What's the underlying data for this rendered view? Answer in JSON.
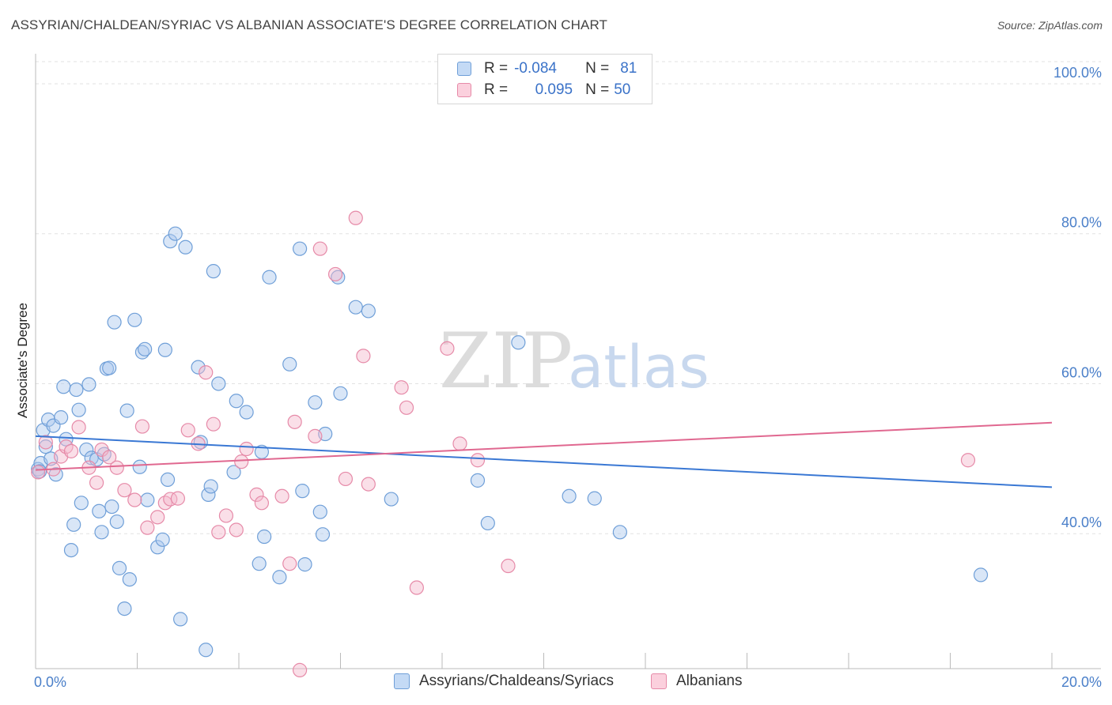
{
  "title": "ASSYRIAN/CHALDEAN/SYRIAC VS ALBANIAN ASSOCIATE'S DEGREE CORRELATION CHART",
  "source": "Source: ZipAtlas.com",
  "watermark": {
    "zip": "ZIP",
    "atlas": "atlas"
  },
  "legend": {
    "rows": [
      {
        "r_label": "R =",
        "r_value": "-0.084",
        "n_label": "N =",
        "n_value": "81"
      },
      {
        "r_label": "R =",
        "r_value": "0.095",
        "n_label": "N =",
        "n_value": "50"
      }
    ]
  },
  "bottom_legend": [
    {
      "label": "Assyrians/Chaldeans/Syriacs"
    },
    {
      "label": "Albanians"
    }
  ],
  "colors": {
    "blue_fill": "#aac8ee",
    "blue_stroke": "#6f9fd8",
    "blue_line": "#3a78d4",
    "pink_fill": "#f5b8cb",
    "pink_stroke": "#e68aa8",
    "pink_line": "#e06890"
  },
  "chart_data": {
    "type": "scatter",
    "ylabel": "Associate's Degree",
    "xlim": [
      0,
      20
    ],
    "ylim": [
      22,
      104
    ],
    "x_tick_labels": [
      "0.0%",
      "20.0%"
    ],
    "y_ticks": [
      {
        "value": 40,
        "label": "40.0%"
      },
      {
        "value": 60,
        "label": "60.0%"
      },
      {
        "value": 80,
        "label": "80.0%"
      },
      {
        "value": 100,
        "label": "100.0%"
      }
    ],
    "series": [
      {
        "name": "Assyrians/Chaldeans/Syriacs",
        "trend": {
          "x": [
            0,
            20
          ],
          "y": [
            53.0,
            46.2
          ]
        },
        "points": [
          [
            0.05,
            48.6
          ],
          [
            0.1,
            49.4
          ],
          [
            0.15,
            53.8
          ],
          [
            0.2,
            51.6
          ],
          [
            0.25,
            55.2
          ],
          [
            0.3,
            50.0
          ],
          [
            0.35,
            54.4
          ],
          [
            0.4,
            47.9
          ],
          [
            0.5,
            55.5
          ],
          [
            0.55,
            59.6
          ],
          [
            0.6,
            52.6
          ],
          [
            0.7,
            37.8
          ],
          [
            0.75,
            41.2
          ],
          [
            0.8,
            59.2
          ],
          [
            0.85,
            56.5
          ],
          [
            0.9,
            44.1
          ],
          [
            1.0,
            51.2
          ],
          [
            1.05,
            59.9
          ],
          [
            1.1,
            50.1
          ],
          [
            1.2,
            49.9
          ],
          [
            1.25,
            43.0
          ],
          [
            1.3,
            40.2
          ],
          [
            1.35,
            50.6
          ],
          [
            1.4,
            62.0
          ],
          [
            1.45,
            62.1
          ],
          [
            1.5,
            43.6
          ],
          [
            1.55,
            68.2
          ],
          [
            1.6,
            41.6
          ],
          [
            1.65,
            35.4
          ],
          [
            1.75,
            30.0
          ],
          [
            1.8,
            56.4
          ],
          [
            1.85,
            33.9
          ],
          [
            1.95,
            68.5
          ],
          [
            2.05,
            48.9
          ],
          [
            2.1,
            64.2
          ],
          [
            2.15,
            64.6
          ],
          [
            2.2,
            44.5
          ],
          [
            2.4,
            38.2
          ],
          [
            2.5,
            39.2
          ],
          [
            2.55,
            64.5
          ],
          [
            2.6,
            47.2
          ],
          [
            2.65,
            79.0
          ],
          [
            2.75,
            80.0
          ],
          [
            2.85,
            28.6
          ],
          [
            2.95,
            78.2
          ],
          [
            3.2,
            62.2
          ],
          [
            3.25,
            52.2
          ],
          [
            3.35,
            24.5
          ],
          [
            3.4,
            45.2
          ],
          [
            3.45,
            46.3
          ],
          [
            3.5,
            75.0
          ],
          [
            3.6,
            60.0
          ],
          [
            3.9,
            48.2
          ],
          [
            3.95,
            57.7
          ],
          [
            4.15,
            56.2
          ],
          [
            4.4,
            36.0
          ],
          [
            4.45,
            50.9
          ],
          [
            4.5,
            39.6
          ],
          [
            4.6,
            74.2
          ],
          [
            4.8,
            34.2
          ],
          [
            5.0,
            62.6
          ],
          [
            5.2,
            78.0
          ],
          [
            5.25,
            45.7
          ],
          [
            5.3,
            35.9
          ],
          [
            5.5,
            57.5
          ],
          [
            5.6,
            42.9
          ],
          [
            5.65,
            39.9
          ],
          [
            5.7,
            53.3
          ],
          [
            5.95,
            74.2
          ],
          [
            6.0,
            58.7
          ],
          [
            6.3,
            70.2
          ],
          [
            6.55,
            69.7
          ],
          [
            7.0,
            44.6
          ],
          [
            8.7,
            47.1
          ],
          [
            8.9,
            41.4
          ],
          [
            9.5,
            65.5
          ],
          [
            10.5,
            45.0
          ],
          [
            11.0,
            44.7
          ],
          [
            11.5,
            40.2
          ],
          [
            18.6,
            34.5
          ],
          [
            0.08,
            48.3
          ]
        ]
      },
      {
        "name": "Albanians",
        "trend": {
          "x": [
            0,
            20
          ],
          "y": [
            48.5,
            54.8
          ]
        },
        "points": [
          [
            0.05,
            48.2
          ],
          [
            0.2,
            52.2
          ],
          [
            0.35,
            48.6
          ],
          [
            0.5,
            50.3
          ],
          [
            0.6,
            51.6
          ],
          [
            0.7,
            51.0
          ],
          [
            0.85,
            54.2
          ],
          [
            1.05,
            48.8
          ],
          [
            1.2,
            46.8
          ],
          [
            1.3,
            51.2
          ],
          [
            1.45,
            50.2
          ],
          [
            1.6,
            48.8
          ],
          [
            1.75,
            45.8
          ],
          [
            1.95,
            44.5
          ],
          [
            2.1,
            54.3
          ],
          [
            2.2,
            40.8
          ],
          [
            2.4,
            42.2
          ],
          [
            2.55,
            44.1
          ],
          [
            2.65,
            44.6
          ],
          [
            2.8,
            44.7
          ],
          [
            3.0,
            53.8
          ],
          [
            3.2,
            52.0
          ],
          [
            3.35,
            61.5
          ],
          [
            3.5,
            54.6
          ],
          [
            3.6,
            40.2
          ],
          [
            3.75,
            42.4
          ],
          [
            3.95,
            40.5
          ],
          [
            4.05,
            49.6
          ],
          [
            4.15,
            51.3
          ],
          [
            4.35,
            45.2
          ],
          [
            4.45,
            44.1
          ],
          [
            4.85,
            45.0
          ],
          [
            5.0,
            36.0
          ],
          [
            5.1,
            54.9
          ],
          [
            5.2,
            21.8
          ],
          [
            5.5,
            53.0
          ],
          [
            5.6,
            78.0
          ],
          [
            5.9,
            74.6
          ],
          [
            6.1,
            47.3
          ],
          [
            6.3,
            82.1
          ],
          [
            6.45,
            63.7
          ],
          [
            6.55,
            46.6
          ],
          [
            7.2,
            59.5
          ],
          [
            7.3,
            56.8
          ],
          [
            7.5,
            32.8
          ],
          [
            8.1,
            64.7
          ],
          [
            8.35,
            52.0
          ],
          [
            8.7,
            49.8
          ],
          [
            9.3,
            35.7
          ],
          [
            18.35,
            49.8
          ]
        ]
      }
    ]
  }
}
